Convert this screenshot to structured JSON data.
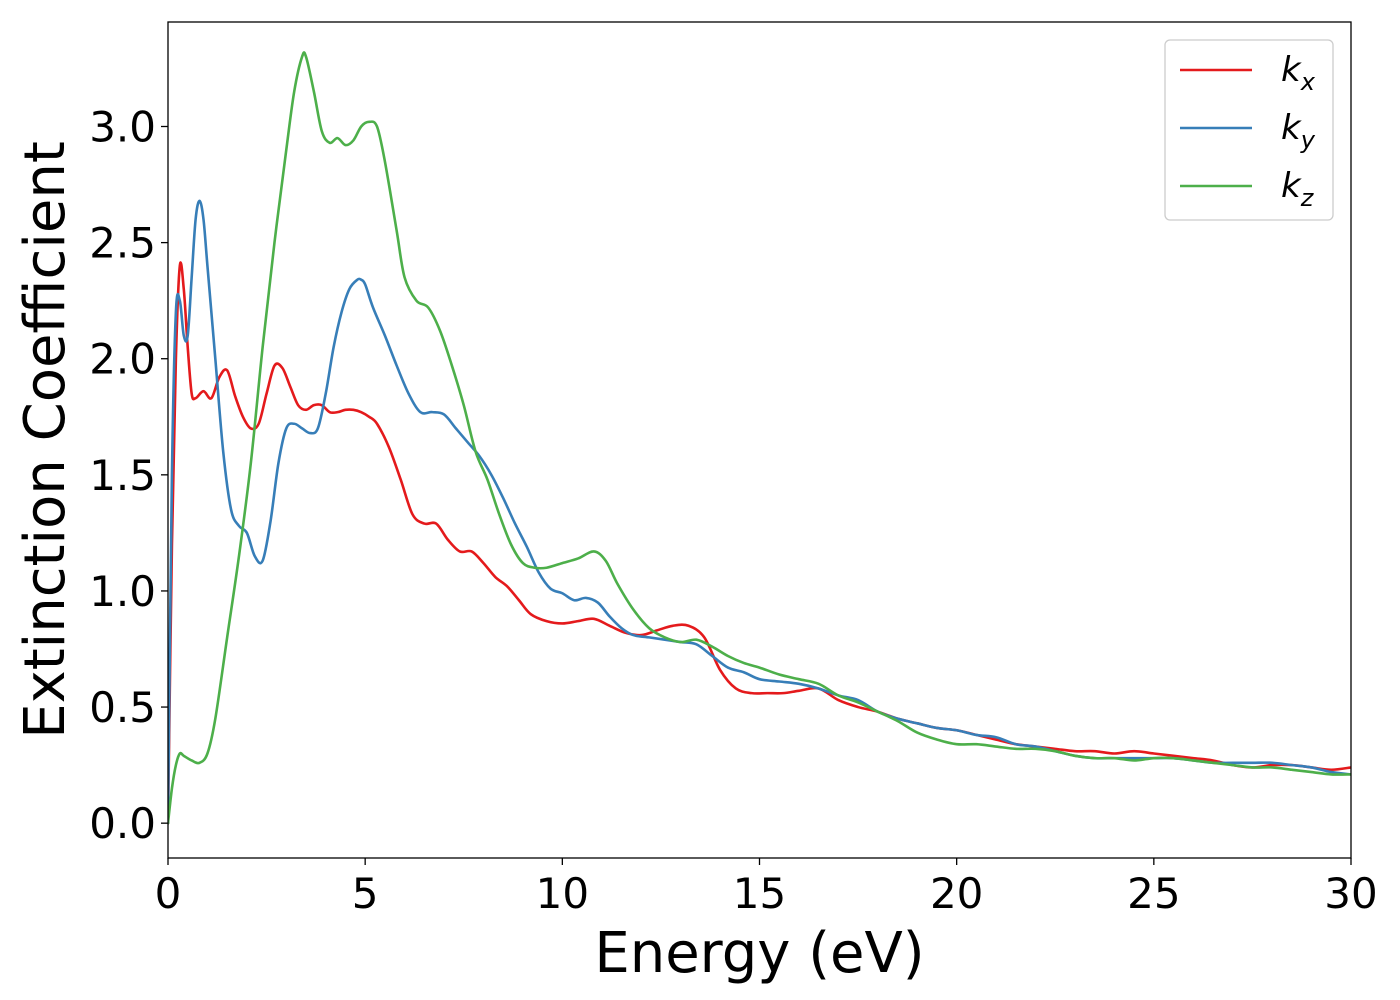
{
  "chart_data": {
    "type": "line",
    "xlabel": "Energy (eV)",
    "ylabel": "Extinction Coefficient",
    "xlim": [
      0,
      30
    ],
    "ylim": [
      -0.15,
      3.45
    ],
    "x_ticks": [
      0,
      5,
      10,
      15,
      20,
      25,
      30
    ],
    "x_tick_labels": [
      "0",
      "5",
      "10",
      "15",
      "20",
      "25",
      "30"
    ],
    "y_ticks": [
      0.0,
      0.5,
      1.0,
      1.5,
      2.0,
      2.5,
      3.0
    ],
    "y_tick_labels": [
      "0.0",
      "0.5",
      "1.0",
      "1.5",
      "2.0",
      "2.5",
      "3.0"
    ],
    "grid": false,
    "legend_position": "top-right",
    "series": [
      {
        "name": "k_x",
        "label_main": "k",
        "label_sub": "x",
        "color": "#e41a1c",
        "x": [
          0,
          0.1,
          0.2,
          0.3,
          0.4,
          0.5,
          0.6,
          0.7,
          0.9,
          1.1,
          1.3,
          1.5,
          1.7,
          1.9,
          2.1,
          2.3,
          2.5,
          2.7,
          2.9,
          3.1,
          3.3,
          3.5,
          3.7,
          3.9,
          4.1,
          4.3,
          4.5,
          4.7,
          4.9,
          5.1,
          5.3,
          5.6,
          5.9,
          6.2,
          6.5,
          6.8,
          7.1,
          7.4,
          7.7,
          8.0,
          8.3,
          8.6,
          8.9,
          9.2,
          9.6,
          10.0,
          10.4,
          10.8,
          11.2,
          11.6,
          12.0,
          12.4,
          12.8,
          13.2,
          13.6,
          14.0,
          14.4,
          14.8,
          15.2,
          15.6,
          16.0,
          16.5,
          17.0,
          17.5,
          18.0,
          18.5,
          19.0,
          19.5,
          20.0,
          20.5,
          21.0,
          21.5,
          22.0,
          22.5,
          23.0,
          23.5,
          24.0,
          24.5,
          25.0,
          25.5,
          26.0,
          26.5,
          27.0,
          27.5,
          28.0,
          28.5,
          29.0,
          29.5,
          30.0
        ],
        "values": [
          0.0,
          1.2,
          2.0,
          2.4,
          2.3,
          2.05,
          1.85,
          1.83,
          1.86,
          1.83,
          1.92,
          1.95,
          1.84,
          1.75,
          1.7,
          1.72,
          1.85,
          1.97,
          1.96,
          1.88,
          1.8,
          1.78,
          1.8,
          1.8,
          1.77,
          1.77,
          1.78,
          1.78,
          1.77,
          1.75,
          1.72,
          1.62,
          1.48,
          1.33,
          1.29,
          1.29,
          1.22,
          1.17,
          1.17,
          1.12,
          1.06,
          1.02,
          0.96,
          0.9,
          0.87,
          0.86,
          0.87,
          0.88,
          0.85,
          0.82,
          0.81,
          0.83,
          0.85,
          0.85,
          0.8,
          0.66,
          0.58,
          0.56,
          0.56,
          0.56,
          0.57,
          0.58,
          0.53,
          0.5,
          0.48,
          0.45,
          0.43,
          0.41,
          0.4,
          0.38,
          0.36,
          0.34,
          0.33,
          0.32,
          0.31,
          0.31,
          0.3,
          0.31,
          0.3,
          0.29,
          0.28,
          0.27,
          0.25,
          0.24,
          0.25,
          0.25,
          0.24,
          0.23,
          0.24
        ]
      },
      {
        "name": "k_y",
        "label_main": "k",
        "label_sub": "y",
        "color": "#377eb8",
        "x": [
          0,
          0.1,
          0.2,
          0.3,
          0.4,
          0.5,
          0.6,
          0.7,
          0.8,
          0.9,
          1.0,
          1.2,
          1.4,
          1.6,
          1.8,
          2.0,
          2.2,
          2.4,
          2.6,
          2.8,
          3.0,
          3.2,
          3.4,
          3.6,
          3.8,
          4.0,
          4.2,
          4.4,
          4.6,
          4.8,
          4.9,
          5.0,
          5.2,
          5.5,
          5.8,
          6.1,
          6.4,
          6.7,
          7.0,
          7.3,
          7.6,
          7.9,
          8.2,
          8.5,
          8.8,
          9.1,
          9.4,
          9.7,
          10.0,
          10.3,
          10.6,
          10.9,
          11.2,
          11.5,
          11.8,
          12.2,
          12.6,
          13.0,
          13.4,
          13.8,
          14.2,
          14.6,
          15.0,
          15.5,
          16.0,
          16.5,
          17.0,
          17.5,
          18.0,
          18.5,
          19.0,
          19.5,
          20.0,
          20.5,
          21.0,
          21.5,
          22.0,
          22.5,
          23.0,
          23.5,
          24.0,
          24.5,
          25.0,
          25.5,
          26.0,
          26.5,
          27.0,
          27.5,
          28.0,
          28.5,
          29.0,
          29.5,
          30.0
        ],
        "values": [
          0.0,
          1.5,
          2.2,
          2.25,
          2.1,
          2.1,
          2.35,
          2.6,
          2.68,
          2.6,
          2.4,
          2.0,
          1.6,
          1.35,
          1.28,
          1.25,
          1.15,
          1.13,
          1.3,
          1.55,
          1.7,
          1.72,
          1.7,
          1.68,
          1.7,
          1.85,
          2.05,
          2.2,
          2.3,
          2.34,
          2.34,
          2.32,
          2.22,
          2.1,
          1.97,
          1.85,
          1.77,
          1.77,
          1.76,
          1.7,
          1.64,
          1.58,
          1.5,
          1.4,
          1.29,
          1.19,
          1.08,
          1.01,
          0.99,
          0.96,
          0.97,
          0.95,
          0.89,
          0.84,
          0.81,
          0.8,
          0.79,
          0.78,
          0.77,
          0.72,
          0.67,
          0.65,
          0.62,
          0.61,
          0.6,
          0.58,
          0.55,
          0.53,
          0.48,
          0.45,
          0.43,
          0.41,
          0.4,
          0.38,
          0.37,
          0.34,
          0.33,
          0.31,
          0.29,
          0.28,
          0.28,
          0.28,
          0.28,
          0.28,
          0.27,
          0.26,
          0.26,
          0.26,
          0.26,
          0.25,
          0.24,
          0.22,
          0.21
        ]
      },
      {
        "name": "k_z",
        "label_main": "k",
        "label_sub": "z",
        "color": "#4daf4a",
        "x": [
          0,
          0.1,
          0.2,
          0.3,
          0.4,
          0.6,
          0.8,
          1.0,
          1.2,
          1.5,
          1.8,
          2.1,
          2.4,
          2.7,
          3.0,
          3.2,
          3.4,
          3.5,
          3.7,
          3.9,
          4.1,
          4.3,
          4.5,
          4.7,
          4.9,
          5.1,
          5.3,
          5.5,
          5.8,
          6.0,
          6.3,
          6.6,
          6.9,
          7.2,
          7.5,
          7.8,
          8.1,
          8.4,
          8.7,
          9.0,
          9.3,
          9.6,
          10.0,
          10.4,
          10.8,
          11.1,
          11.4,
          11.8,
          12.2,
          12.6,
          13.0,
          13.4,
          13.8,
          14.2,
          14.6,
          15.0,
          15.5,
          16.0,
          16.5,
          17.0,
          17.5,
          18.0,
          18.5,
          19.0,
          19.5,
          20.0,
          20.5,
          21.0,
          21.5,
          22.0,
          22.5,
          23.0,
          23.5,
          24.0,
          24.5,
          25.0,
          25.5,
          26.0,
          26.5,
          27.0,
          27.5,
          28.0,
          28.5,
          29.0,
          29.5,
          30.0
        ],
        "values": [
          0.0,
          0.15,
          0.25,
          0.3,
          0.29,
          0.27,
          0.26,
          0.3,
          0.45,
          0.8,
          1.15,
          1.55,
          2.05,
          2.5,
          2.9,
          3.15,
          3.3,
          3.3,
          3.15,
          2.98,
          2.93,
          2.95,
          2.92,
          2.94,
          3.0,
          3.02,
          3.0,
          2.85,
          2.55,
          2.35,
          2.25,
          2.22,
          2.12,
          1.97,
          1.8,
          1.6,
          1.48,
          1.33,
          1.2,
          1.12,
          1.1,
          1.1,
          1.12,
          1.14,
          1.17,
          1.13,
          1.03,
          0.92,
          0.84,
          0.8,
          0.78,
          0.79,
          0.76,
          0.72,
          0.69,
          0.67,
          0.64,
          0.62,
          0.6,
          0.55,
          0.52,
          0.48,
          0.44,
          0.39,
          0.36,
          0.34,
          0.34,
          0.33,
          0.32,
          0.32,
          0.31,
          0.29,
          0.28,
          0.28,
          0.27,
          0.28,
          0.28,
          0.27,
          0.26,
          0.25,
          0.24,
          0.24,
          0.23,
          0.22,
          0.21,
          0.21
        ]
      }
    ]
  }
}
